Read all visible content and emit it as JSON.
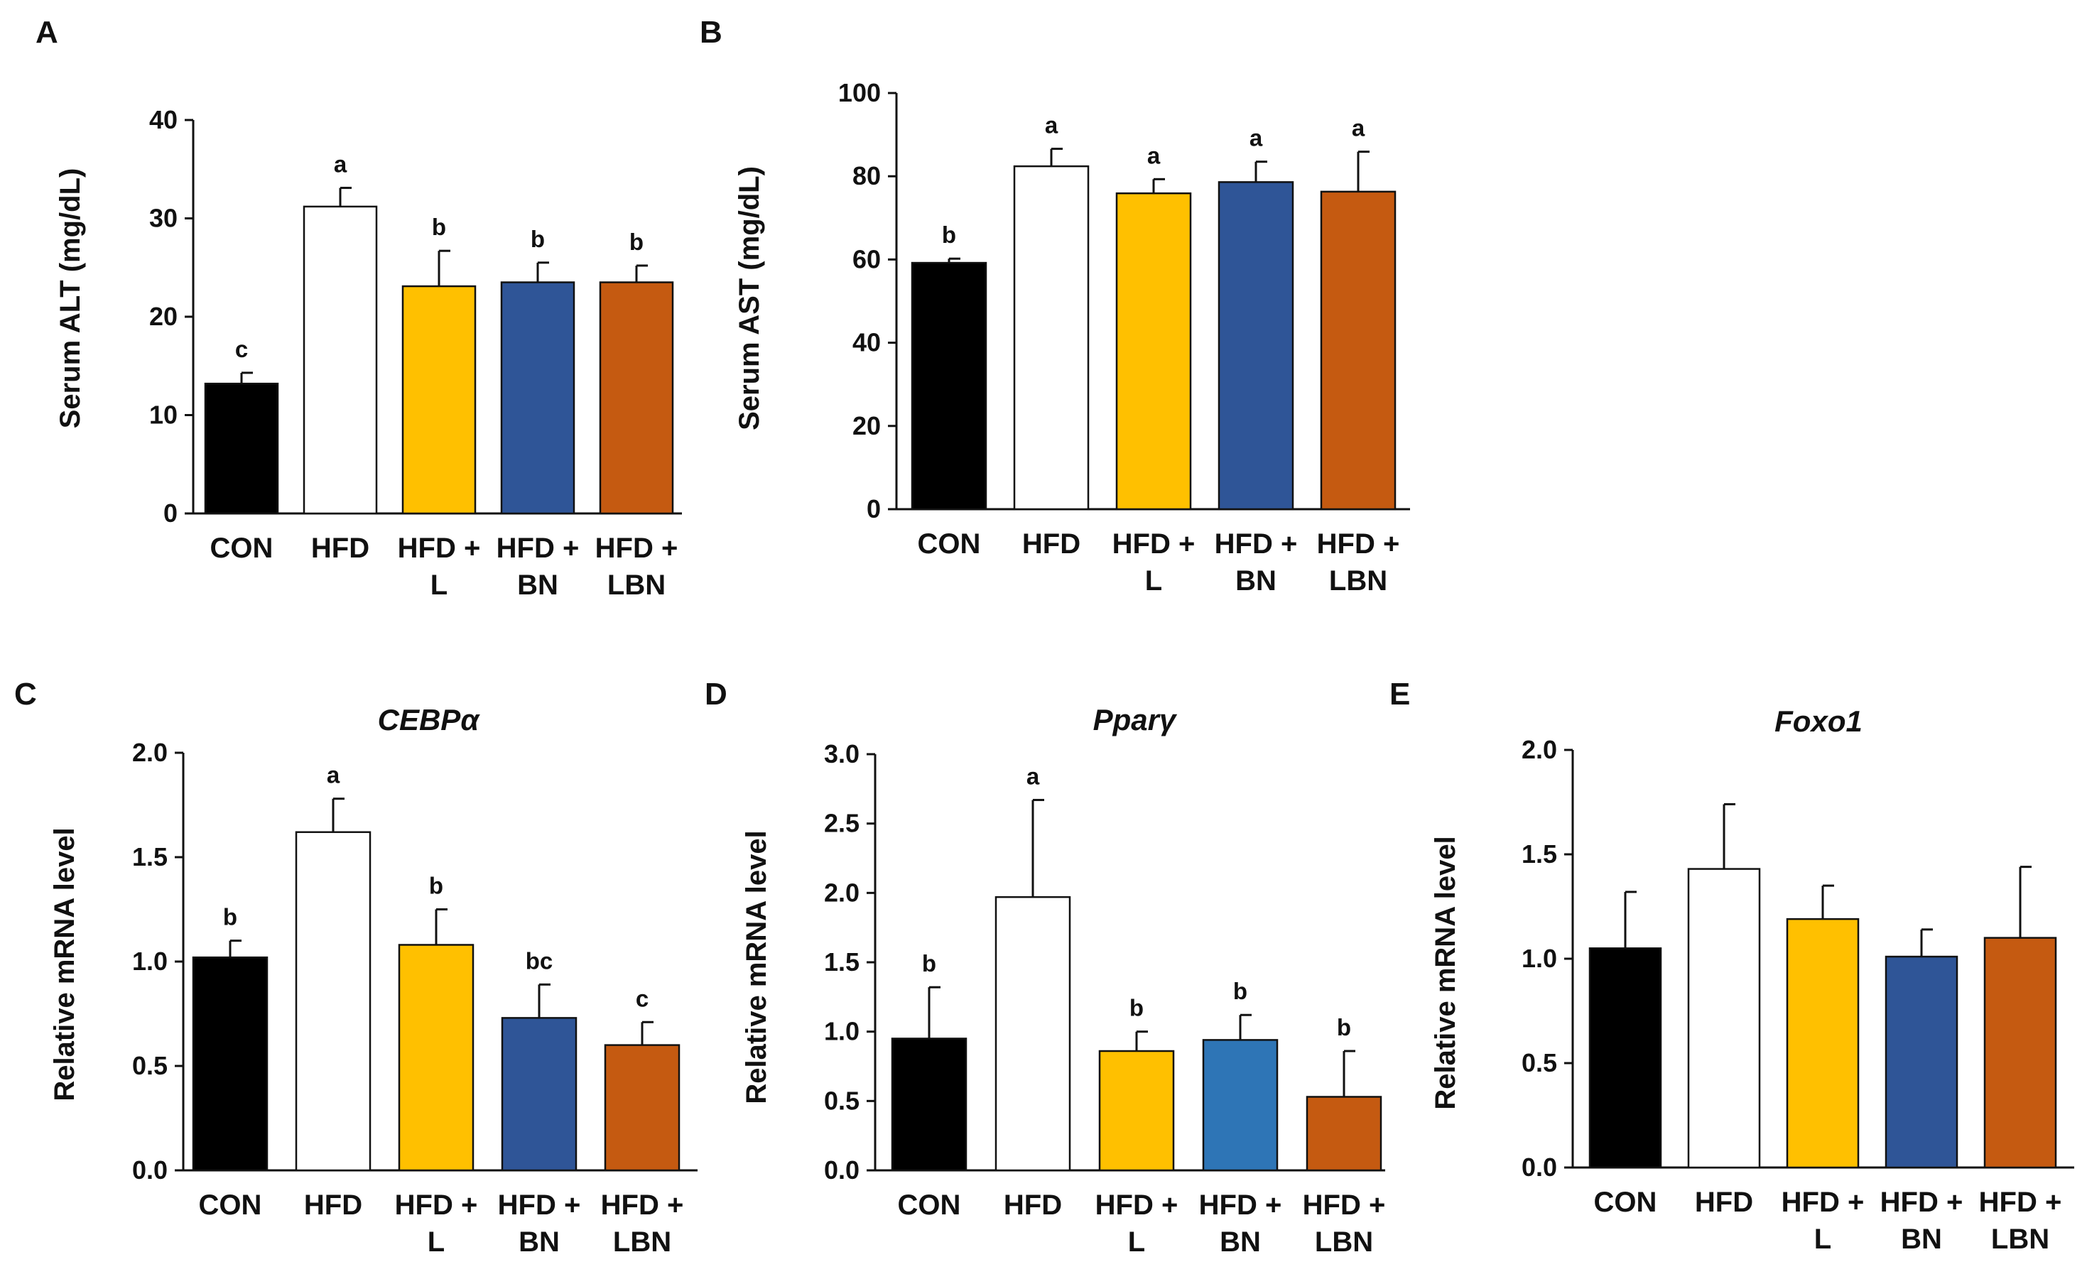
{
  "chart_data": [
    {
      "panel": "A",
      "type": "bar",
      "title": "",
      "xlabel": "",
      "ylabel": "Serum ALT (mg/dL)",
      "ylim": [
        0,
        40
      ],
      "yticks": [
        0,
        10,
        20,
        30,
        40
      ],
      "categories": [
        [
          "CON"
        ],
        [
          "HFD"
        ],
        [
          "HFD +",
          "L"
        ],
        [
          "HFD +",
          "BN"
        ],
        [
          "HFD +",
          "LBN"
        ]
      ],
      "values": [
        13.2,
        31.2,
        23.1,
        23.5,
        23.5
      ],
      "errors": [
        1.1,
        1.9,
        3.6,
        2.0,
        1.7
      ],
      "letters": [
        "c",
        "a",
        "b",
        "b",
        "b"
      ],
      "colors": [
        "#000000",
        "#ffffff",
        "#ffc000",
        "#2f5597",
        "#c55a11"
      ]
    },
    {
      "panel": "B",
      "type": "bar",
      "title": "",
      "xlabel": "",
      "ylabel": "Serum AST (mg/dL)",
      "ylim": [
        0,
        100
      ],
      "yticks": [
        0,
        20,
        40,
        60,
        80,
        100
      ],
      "categories": [
        [
          "CON"
        ],
        [
          "HFD"
        ],
        [
          "HFD +",
          "L"
        ],
        [
          "HFD +",
          "BN"
        ],
        [
          "HFD +",
          "LBN"
        ]
      ],
      "values": [
        59.2,
        82.4,
        75.9,
        78.6,
        76.3
      ],
      "errors": [
        1.0,
        4.2,
        3.4,
        4.9,
        9.6
      ],
      "letters": [
        "b",
        "a",
        "a",
        "a",
        "a"
      ],
      "colors": [
        "#000000",
        "#ffffff",
        "#ffc000",
        "#2f5597",
        "#c55a11"
      ]
    },
    {
      "panel": "C",
      "type": "bar",
      "title": "CEBPα",
      "xlabel": "",
      "ylabel": "Relative mRNA level",
      "ylim": [
        0,
        2.0
      ],
      "yticks": [
        "0.0",
        "0.5",
        "1.0",
        "1.5",
        "2.0"
      ],
      "categories": [
        [
          "CON"
        ],
        [
          "HFD"
        ],
        [
          "HFD +",
          "L"
        ],
        [
          "HFD +",
          "BN"
        ],
        [
          "HFD +",
          "LBN"
        ]
      ],
      "values": [
        1.02,
        1.62,
        1.08,
        0.73,
        0.6
      ],
      "errors": [
        0.08,
        0.16,
        0.17,
        0.16,
        0.11
      ],
      "letters": [
        "b",
        "a",
        "b",
        "bc",
        "c"
      ],
      "colors": [
        "#000000",
        "#ffffff",
        "#ffc000",
        "#2f5597",
        "#c55a11"
      ]
    },
    {
      "panel": "D",
      "type": "bar",
      "title": "Pparγ",
      "xlabel": "",
      "ylabel": "Relative mRNA level",
      "ylim": [
        0,
        3.0
      ],
      "yticks": [
        "0.0",
        "0.5",
        "1.0",
        "1.5",
        "2.0",
        "2.5",
        "3.0"
      ],
      "categories": [
        [
          "CON"
        ],
        [
          "HFD"
        ],
        [
          "HFD +",
          "L"
        ],
        [
          "HFD +",
          "BN"
        ],
        [
          "HFD +",
          "LBN"
        ]
      ],
      "values": [
        0.95,
        1.97,
        0.86,
        0.94,
        0.53
      ],
      "errors": [
        0.37,
        0.7,
        0.14,
        0.18,
        0.33
      ],
      "letters": [
        "b",
        "a",
        "b",
        "b",
        "b"
      ],
      "colors": [
        "#000000",
        "#ffffff",
        "#ffc000",
        "#2e75b6",
        "#c55a11"
      ]
    },
    {
      "panel": "E",
      "type": "bar",
      "title": "Foxo1",
      "xlabel": "",
      "ylabel": "Relative mRNA level",
      "ylim": [
        0,
        2.0
      ],
      "yticks": [
        "0.0",
        "0.5",
        "1.0",
        "1.5",
        "2.0"
      ],
      "categories": [
        [
          "CON"
        ],
        [
          "HFD"
        ],
        [
          "HFD +",
          "L"
        ],
        [
          "HFD +",
          "BN"
        ],
        [
          "HFD +",
          "LBN"
        ]
      ],
      "values": [
        1.05,
        1.43,
        1.19,
        1.01,
        1.1
      ],
      "errors": [
        0.27,
        0.31,
        0.16,
        0.13,
        0.34
      ],
      "letters": [
        "",
        "",
        "",
        "",
        ""
      ],
      "colors": [
        "#000000",
        "#ffffff",
        "#ffc000",
        "#2f5597",
        "#c55a11"
      ]
    }
  ]
}
